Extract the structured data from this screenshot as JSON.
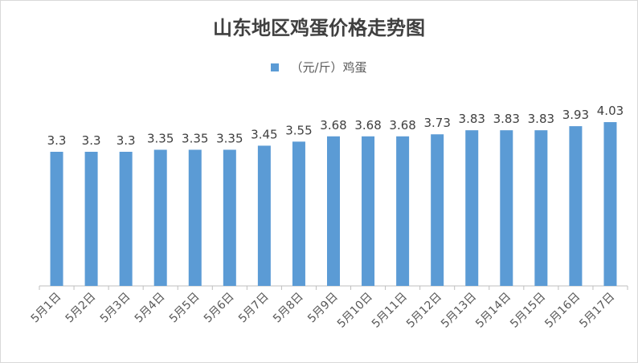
{
  "chart_data": {
    "type": "bar",
    "title": "山东地区鸡蛋价格走势图",
    "legend_position": "top",
    "grid": false,
    "categories": [
      "5月1日",
      "5月2日",
      "5月3日",
      "5月4日",
      "5月5日",
      "5月6日",
      "5月7日",
      "5月8日",
      "5月9日",
      "5月10日",
      "5月11日",
      "5月12日",
      "5月13日",
      "5月14日",
      "5月15日",
      "5月16日",
      "5月17日"
    ],
    "series": [
      {
        "name": "（元/斤）鸡蛋",
        "color": "#5b9bd5",
        "values": [
          3.3,
          3.3,
          3.3,
          3.35,
          3.35,
          3.35,
          3.45,
          3.55,
          3.68,
          3.68,
          3.68,
          3.73,
          3.83,
          3.83,
          3.83,
          3.93,
          4.03
        ],
        "labels": [
          "3.3",
          "3.3",
          "3.3",
          "3.35",
          "3.35",
          "3.35",
          "3.45",
          "3.55",
          "3.68",
          "3.68",
          "3.68",
          "3.73",
          "3.83",
          "3.83",
          "3.83",
          "3.93",
          "4.03"
        ]
      }
    ],
    "ylim": [
      0,
      4.5
    ],
    "axis_color": "#bfbfbf"
  }
}
